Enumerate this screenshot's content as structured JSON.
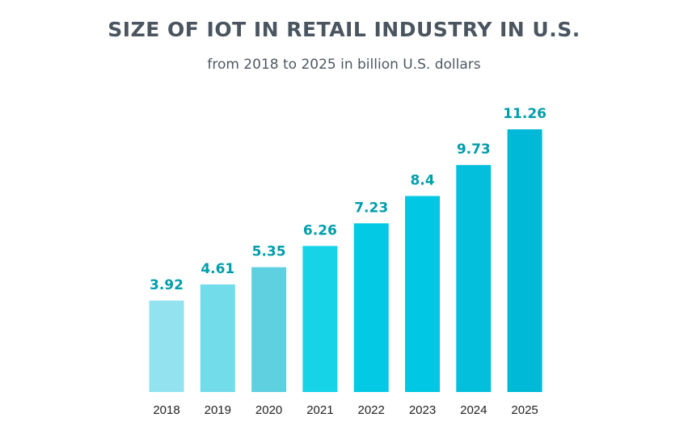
{
  "chart_data": {
    "type": "bar",
    "title": "SIZE OF IOT IN RETAIL INDUSTRY IN U.S.",
    "subtitle": "from 2018 to 2025 in billion U.S. dollars",
    "categories": [
      "2018",
      "2019",
      "2020",
      "2021",
      "2022",
      "2023",
      "2024",
      "2025"
    ],
    "values": [
      3.92,
      4.61,
      5.35,
      6.26,
      7.23,
      8.4,
      9.73,
      11.26
    ],
    "value_labels": [
      "3.92",
      "4.61",
      "5.35",
      "6.26",
      "7.23",
      "8.4",
      "9.73",
      "11.26"
    ],
    "bar_colors": [
      "#92e3ef",
      "#72dcea",
      "#5fd0e0",
      "#16d3e8",
      "#04c9e4",
      "#00c7e3",
      "#03bfdc",
      "#00b9d6"
    ],
    "label_color": "#009eac",
    "ylim": [
      0,
      11.26
    ],
    "grid": false,
    "legend": "none",
    "xlabel": "",
    "ylabel": ""
  }
}
